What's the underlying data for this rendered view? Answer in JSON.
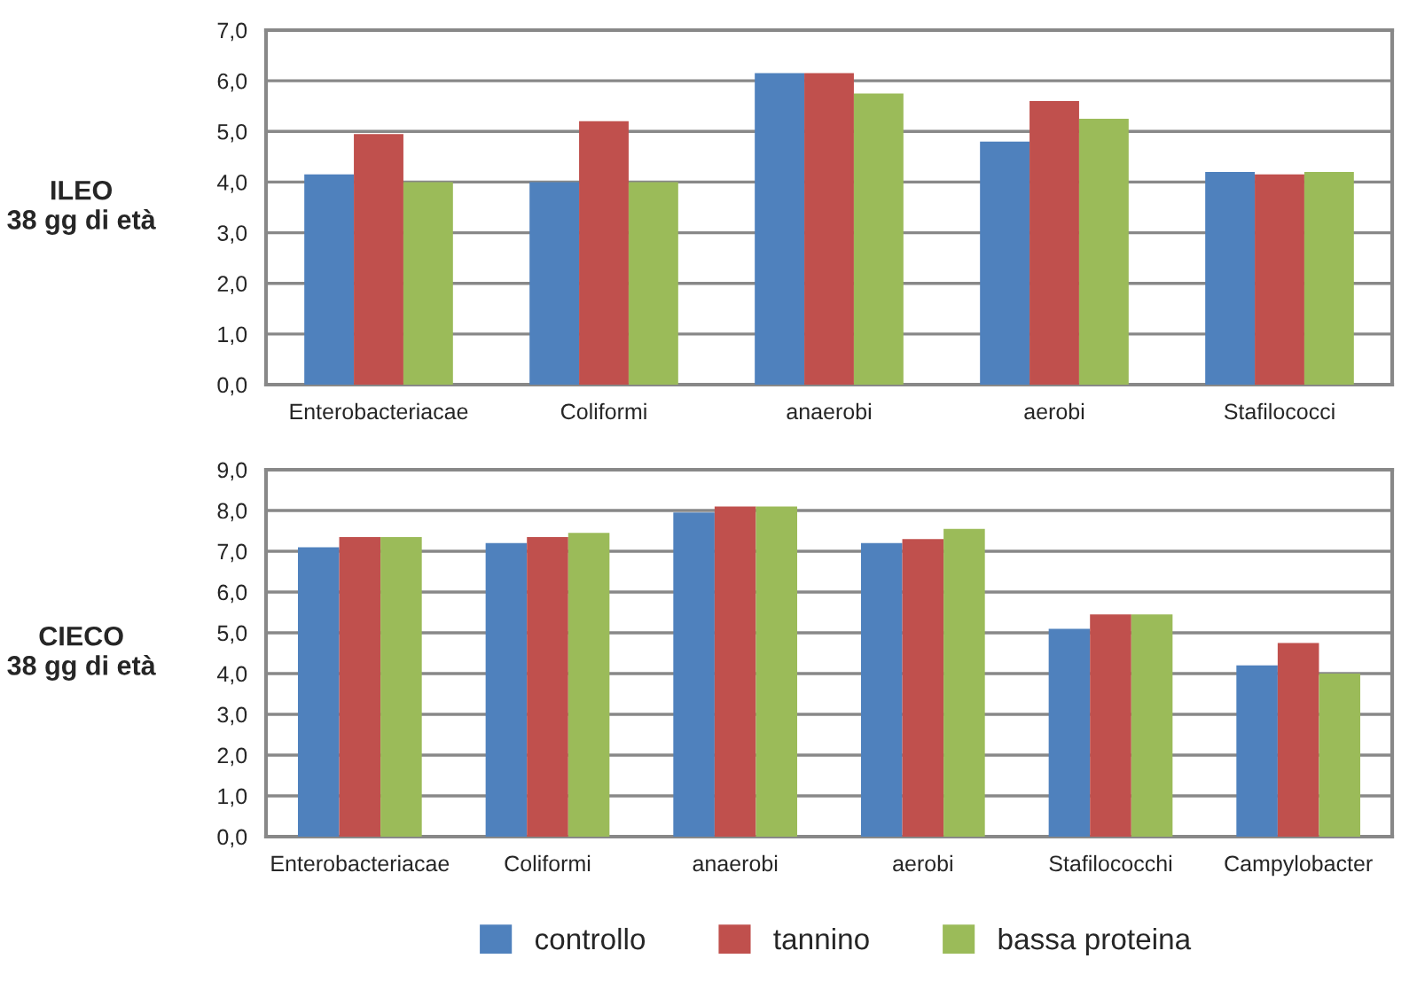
{
  "chart_data": [
    {
      "type": "bar",
      "ylabel": "ILEO\n38 gg di età",
      "categories": [
        "Enterobacteriacae",
        "Coliformi",
        "anaerobi",
        "aerobi",
        "Stafilococci"
      ],
      "series": [
        {
          "color": "#4f81bd",
          "values": [
            4.15,
            4.0,
            6.15,
            4.8,
            4.2
          ]
        },
        {
          "color": "#c0504d",
          "values": [
            4.95,
            5.2,
            6.15,
            5.6,
            4.15
          ]
        },
        {
          "color": "#9bbb59",
          "values": [
            4.0,
            4.0,
            5.75,
            5.25,
            4.2
          ]
        }
      ],
      "ylim": [
        0,
        7
      ],
      "yticks": [
        {
          "value": 0,
          "label": "0,0"
        },
        {
          "value": 1,
          "label": "1,0"
        },
        {
          "value": 2,
          "label": "2,0"
        },
        {
          "value": 3,
          "label": "3,0"
        },
        {
          "value": 4,
          "label": "4,0"
        },
        {
          "value": 5,
          "label": "5,0"
        },
        {
          "value": 6,
          "label": "6,0"
        },
        {
          "value": 7,
          "label": "7,0"
        }
      ],
      "grid": "y",
      "legend": false
    },
    {
      "type": "bar",
      "ylabel": "CIECO\n38 gg di età",
      "categories": [
        "Enterobacteriacae",
        "Coliformi",
        "anaerobi",
        "aerobi",
        "Stafilococchi",
        "Campylobacter"
      ],
      "series": [
        {
          "name": "controllo",
          "color": "#4f81bd",
          "values": [
            7.1,
            7.2,
            7.95,
            7.2,
            5.1,
            4.2
          ]
        },
        {
          "name": "tannino",
          "color": "#c0504d",
          "values": [
            7.35,
            7.35,
            8.1,
            7.3,
            5.45,
            4.75
          ]
        },
        {
          "name": "bassa proteina",
          "color": "#9bbb59",
          "values": [
            7.35,
            7.45,
            8.1,
            7.55,
            5.45,
            4.0
          ]
        }
      ],
      "ylim": [
        0,
        9
      ],
      "yticks": [
        {
          "value": 0,
          "label": "0,0"
        },
        {
          "value": 1,
          "label": "1,0"
        },
        {
          "value": 2,
          "label": "2,0"
        },
        {
          "value": 3,
          "label": "3,0"
        },
        {
          "value": 4,
          "label": "4,0"
        },
        {
          "value": 5,
          "label": "5,0"
        },
        {
          "value": 6,
          "label": "6,0"
        },
        {
          "value": 7,
          "label": "7,0"
        },
        {
          "value": 8,
          "label": "8,0"
        },
        {
          "value": 9,
          "label": "9,0"
        }
      ],
      "grid": "y",
      "legend": "bottom"
    }
  ]
}
